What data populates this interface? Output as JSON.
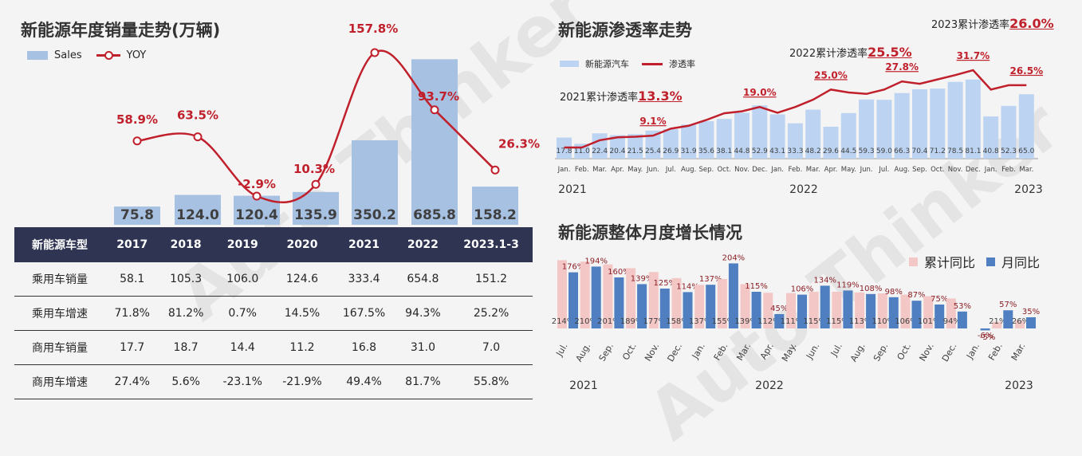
{
  "panel1": {
    "title": "新能源年度销量走势(万辆)",
    "legend_sales": "Sales",
    "legend_yoy": "YOY"
  },
  "panel2": {
    "title": "新能源渗透率走势",
    "legend_bar": "新能源汽车",
    "legend_line": "渗透率",
    "cum_2023_label": "2023累计渗透率",
    "cum_2023_value": "26.0%",
    "cum_2022_label": "2022累计渗透率",
    "cum_2022_value": "25.5%",
    "cum_2021_label": "2021累计渗透率",
    "cum_2021_value": "13.3%",
    "year_labels": [
      "2021",
      "2022",
      "2023"
    ]
  },
  "panel3": {
    "title": "新能源整体月度增长情况",
    "legend_cum": "累计同比",
    "legend_month": "月同比",
    "year_labels": [
      "2021",
      "2022",
      "2023"
    ]
  },
  "table": {
    "headers": [
      "新能源车型",
      "2017",
      "2018",
      "2019",
      "2020",
      "2021",
      "2022",
      "2023.1-3"
    ],
    "rows": [
      [
        "乘用车销量",
        "58.1",
        "105.3",
        "106.0",
        "124.6",
        "333.4",
        "654.8",
        "151.2"
      ],
      [
        "乘用车增速",
        "71.8%",
        "81.2%",
        "0.7%",
        "14.5%",
        "167.5%",
        "94.3%",
        "25.2%"
      ],
      [
        "商用车销量",
        "17.7",
        "18.7",
        "14.4",
        "11.2",
        "16.8",
        "31.0",
        "7.0"
      ],
      [
        "商用车增速",
        "27.4%",
        "5.6%",
        "-23.1%",
        "-21.9%",
        "49.4%",
        "81.7%",
        "55.8%"
      ]
    ]
  },
  "watermark": "Auto Thinker",
  "chart_data": [
    {
      "type": "bar",
      "title": "新能源年度销量走势(万辆)",
      "categories": [
        "2017",
        "2018",
        "2019",
        "2020",
        "2021",
        "2022",
        "2023.1-3"
      ],
      "series": [
        {
          "name": "Sales",
          "type": "bar",
          "values": [
            75.8,
            124.0,
            120.4,
            135.9,
            350.2,
            685.8,
            158.2
          ],
          "labels": [
            "75.8",
            "124.0",
            "120.4",
            "135.9",
            "350.2",
            "685.8",
            "158.2"
          ]
        },
        {
          "name": "YOY",
          "type": "line",
          "values": [
            58.9,
            63.5,
            -2.9,
            10.3,
            157.8,
            93.7,
            26.3
          ],
          "labels": [
            "58.9%",
            "63.5%",
            "-2.9%",
            "10.3%",
            "157.8%",
            "93.7%",
            "26.3%"
          ]
        }
      ],
      "ylim": [
        0,
        700
      ],
      "colors": {
        "bar": "#a7c1e3",
        "line": "#c0202b"
      }
    },
    {
      "type": "bar",
      "title": "新能源渗透率走势",
      "categories": [
        "Jan.",
        "Feb.",
        "Mar.",
        "Apr.",
        "May.",
        "Jun.",
        "Jul.",
        "Aug.",
        "Sep.",
        "Oct.",
        "Nov.",
        "Dec.",
        "Jan.",
        "Feb.",
        "Mar.",
        "Apr.",
        "May.",
        "Jun.",
        "Jul.",
        "Aug.",
        "Sep.",
        "Oct.",
        "Nov.",
        "Dec.",
        "Jan.",
        "Feb.",
        "Mar."
      ],
      "series": [
        {
          "name": "新能源汽车",
          "type": "bar",
          "values": [
            17.8,
            11.0,
            22.4,
            20.4,
            21.5,
            25.4,
            26.9,
            31.9,
            35.6,
            38.1,
            44.8,
            52.9,
            43.1,
            33.3,
            48.2,
            29.6,
            44.5,
            59.3,
            59.0,
            66.3,
            70.4,
            71.2,
            78.5,
            81.1,
            40.8,
            52.3,
            65.0
          ],
          "labels": [
            "17.8",
            "11.0",
            "22.4",
            "20.4",
            "21.5",
            "25.4",
            "26.9",
            "31.9",
            "35.6",
            "38.1",
            "44.8",
            "52.9",
            "43.1",
            "33.3",
            "48.2",
            "29.6",
            "44.5",
            "59.3",
            "59.0",
            "66.3",
            "70.4",
            "71.2",
            "78.5",
            "81.1",
            "40.8",
            "52.3",
            "65.0"
          ]
        },
        {
          "name": "渗透率",
          "type": "line",
          "values": [
            5.0,
            5.0,
            7.5,
            8.5,
            8.7,
            9.1,
            11.5,
            12.5,
            14.5,
            16.8,
            17.5,
            19.0,
            17.0,
            19.0,
            21.5,
            25.0,
            24.0,
            23.5,
            25.0,
            27.8,
            27.0,
            28.5,
            30.0,
            31.7,
            25.0,
            26.5,
            26.5
          ],
          "labels": {
            "5": "9.1%",
            "11": "19.0%",
            "15": "25.0%",
            "19": "27.8%",
            "23": "31.7%",
            "26": "26.5%"
          }
        }
      ],
      "colors": {
        "bar": "#bcd4f2",
        "line": "#c0202b"
      }
    },
    {
      "type": "bar",
      "title": "新能源整体月度增长情况",
      "categories": [
        "Jul.",
        "Aug.",
        "Sep.",
        "Oct.",
        "Nov.",
        "Dec.",
        "Jan.",
        "Feb.",
        "Mar.",
        "Apr.",
        "May.",
        "Jun.",
        "Jul.",
        "Aug.",
        "Sep.",
        "Oct.",
        "Nov.",
        "Dec.",
        "Jan.",
        "Feb.",
        "Mar."
      ],
      "series": [
        {
          "name": "累计同比",
          "type": "bar",
          "values": [
            214,
            210,
            201,
            189,
            177,
            158,
            137,
            155,
            139,
            112,
            111,
            115,
            115,
            113,
            110,
            106,
            101,
            94,
            null,
            21,
            26
          ],
          "labels": [
            "214%",
            "210%",
            "201%",
            "189%",
            "177%",
            "158%",
            "137%",
            "155%",
            "139%",
            "112%",
            "111%",
            "115%",
            "115%",
            "113%",
            "110%",
            "106%",
            "101%",
            "94%",
            "",
            "21%",
            "26%"
          ]
        },
        {
          "name": "月同比",
          "type": "bar",
          "values": [
            176,
            194,
            160,
            139,
            125,
            114,
            137,
            204,
            115,
            45,
            106,
            134,
            119,
            108,
            98,
            87,
            75,
            53,
            -6,
            57,
            35
          ],
          "labels": [
            "176%",
            "194%",
            "160%",
            "139%",
            "125%",
            "114%",
            "137%",
            "204%",
            "115%",
            "45%",
            "106%",
            "134%",
            "119%",
            "108%",
            "98%",
            "87%",
            "75%",
            "53%",
            "-6%",
            "57%",
            "35%"
          ]
        }
      ],
      "extra_labels": {
        "18": "-5%"
      },
      "colors": {
        "cumulative": "#f4c7c7",
        "monthly": "#4f7fc1"
      }
    }
  ]
}
